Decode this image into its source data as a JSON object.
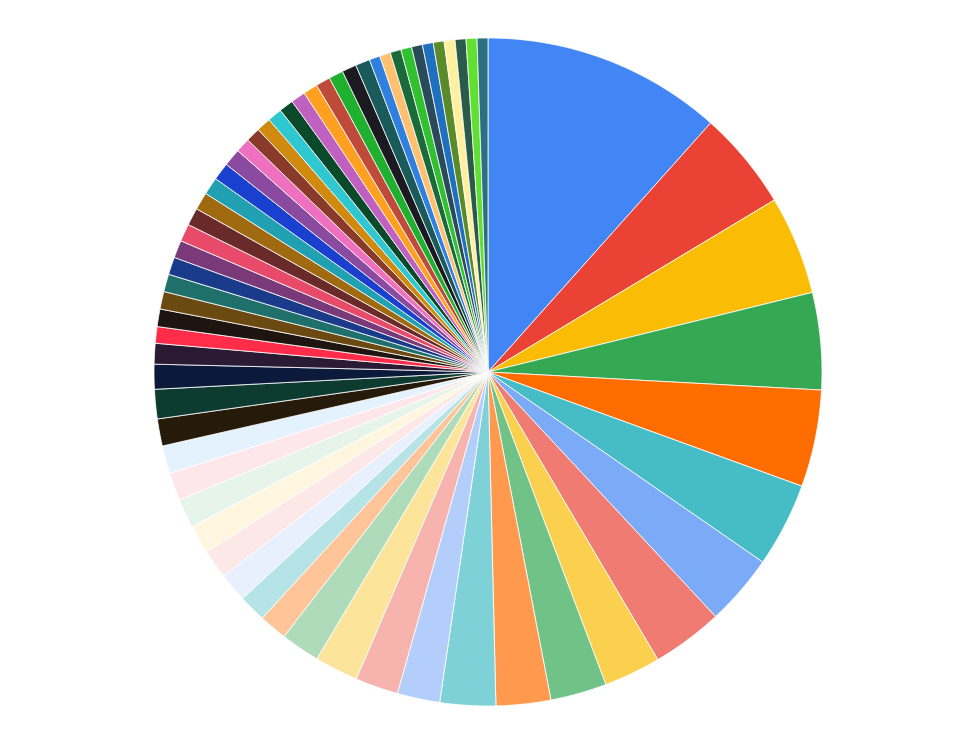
{
  "chart_data": {
    "type": "pie",
    "categories": [
      null,
      null,
      null,
      null,
      null,
      null,
      null,
      null,
      null,
      null,
      null,
      null,
      null,
      null,
      null,
      null,
      null,
      null,
      null,
      null,
      null,
      null,
      null,
      null,
      null,
      null,
      null,
      null,
      null,
      null,
      null,
      null,
      null,
      null,
      null,
      null,
      null,
      null,
      null,
      null,
      null,
      null,
      null,
      null,
      null,
      null,
      null,
      null,
      null,
      null,
      null,
      null,
      null,
      null,
      null,
      null,
      null,
      null,
      null,
      null,
      null,
      null
    ],
    "values": [
      11.61,
      4.78,
      4.78,
      4.69,
      4.69,
      4.08,
      3.44,
      3.44,
      2.75,
      2.72,
      2.64,
      2.69,
      2.06,
      2.08,
      2.11,
      1.89,
      1.36,
      1.33,
      1.4,
      1.4,
      1.4,
      1.4,
      1.35,
      1.35,
      1.31,
      1.42,
      1.2,
      1.0,
      0.8,
      0.85,
      0.85,
      0.85,
      0.85,
      0.85,
      0.85,
      0.85,
      0.85,
      0.85,
      0.85,
      0.85,
      0.7,
      0.7,
      0.7,
      0.7,
      0.7,
      0.7,
      0.7,
      0.7,
      0.7,
      0.7,
      0.7,
      0.525,
      0.525,
      0.525,
      0.525,
      0.525,
      0.525,
      0.525,
      0.525,
      0.525,
      0.525,
      0.525
    ],
    "colors": [
      "#4285f4",
      "#ea4335",
      "#fbbc04",
      "#34a853",
      "#ff6d01",
      "#46bdc6",
      "#7baaf7",
      "#f07b72",
      "#fcd04f",
      "#71c287",
      "#ff994d",
      "#7ed1d7",
      "#b3cefb",
      "#f7b4ae",
      "#fde49b",
      "#aedcba",
      "#ffc599",
      "#b5e3e6",
      "#e8f0fe",
      "#fce8e6",
      "#fff6e0",
      "#e6f4ea",
      "#fde7eb",
      "#e3f2fd",
      "#261a0a",
      "#0d3b30",
      "#0b1a3a",
      "#2a1a33",
      "#ff2d4a",
      "#1e1410",
      "#6b4a12",
      "#1f6f6a",
      "#1a3a8a",
      "#7a3a7a",
      "#e84a6a",
      "#6a2a2a",
      "#a06a10",
      "#20a0b0",
      "#1a40d0",
      "#8a4aa0",
      "#f070c0",
      "#8a3a2a",
      "#d08a10",
      "#30c8d0",
      "#0a4a2a",
      "#c060c0",
      "#ffa020",
      "#c04a3a",
      "#20b030",
      "#1a1a20",
      "#1a5a5a",
      "#3080e0",
      "#ffc070",
      "#1a6a3a",
      "#30c030",
      "#2a4a5a",
      "#2070c0",
      "#5a8a2a",
      "#fff0a0",
      "#2a5a4a",
      "#60e030",
      "#2a7080"
    ]
  }
}
